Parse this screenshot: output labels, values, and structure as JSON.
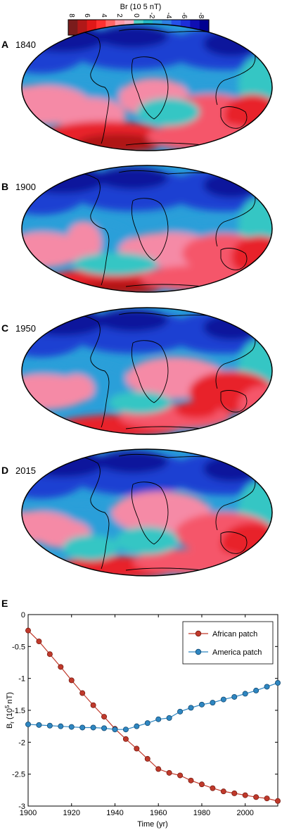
{
  "colorbar": {
    "title": "Br (10 5 nT)",
    "ticks": [
      "8",
      "6",
      "4",
      "2",
      "0",
      "-2",
      "-4",
      "-6",
      "-8"
    ],
    "colors": [
      "#7a1c1c",
      "#b01818",
      "#e01818",
      "#ff3030",
      "#ff6666",
      "#ff9aa8",
      "#f4b2c4",
      "#4fd0c8",
      "#22b7c4",
      "#2aa1dc",
      "#2f7fe4",
      "#2550e8",
      "#1c2fd9",
      "#0f0fb4",
      "#000090"
    ]
  },
  "maps": [
    {
      "panel": "A",
      "year": "1840"
    },
    {
      "panel": "B",
      "year": "1900"
    },
    {
      "panel": "C",
      "year": "1950"
    },
    {
      "panel": "D",
      "year": "2015"
    }
  ],
  "palette": {
    "ocean_neg": "#2a9fd9",
    "deep_neg": "#1e3fd2",
    "deepest_neg": "#0d129c",
    "near_zero_neg": "#34c6c4",
    "pos_light": "#f58aa6",
    "pos_mid": "#f5566a",
    "pos_strong": "#e8202a",
    "pos_deep": "#b01818",
    "coast": "#000000"
  },
  "chart_data": {
    "type": "line",
    "panel": "E",
    "xlabel": "Time (yr)",
    "ylabel": "B",
    "ylabel_sub": "r",
    "ylabel_unit": "(10",
    "ylabel_unit_sup": "5",
    "ylabel_unit_end": "nT)",
    "xlim": [
      1900,
      2015
    ],
    "ylim": [
      -3,
      0
    ],
    "xticks": [
      "1900",
      "1920",
      "1940",
      "1960",
      "1980",
      "2000"
    ],
    "yticks": [
      "0",
      "-0.5",
      "-1",
      "-1.5",
      "-2",
      "-2.5",
      "-3"
    ],
    "legend_position": "top-right",
    "series": [
      {
        "name": "African patch",
        "color": "#c0392b",
        "x": [
          1900,
          1905,
          1910,
          1915,
          1920,
          1925,
          1930,
          1935,
          1940,
          1945,
          1950,
          1955,
          1960,
          1965,
          1970,
          1975,
          1980,
          1985,
          1990,
          1995,
          2000,
          2005,
          2010,
          2015
        ],
        "y": [
          -0.25,
          -0.42,
          -0.62,
          -0.82,
          -1.03,
          -1.23,
          -1.42,
          -1.6,
          -1.79,
          -1.95,
          -2.1,
          -2.26,
          -2.42,
          -2.48,
          -2.52,
          -2.6,
          -2.66,
          -2.72,
          -2.77,
          -2.8,
          -2.83,
          -2.86,
          -2.88,
          -2.92
        ]
      },
      {
        "name": "America patch",
        "color": "#2e86c1",
        "x": [
          1900,
          1905,
          1910,
          1915,
          1920,
          1925,
          1930,
          1935,
          1940,
          1945,
          1950,
          1955,
          1960,
          1965,
          1970,
          1975,
          1980,
          1985,
          1990,
          1995,
          2000,
          2005,
          2010,
          2015
        ],
        "y": [
          -1.72,
          -1.73,
          -1.74,
          -1.75,
          -1.76,
          -1.77,
          -1.77,
          -1.78,
          -1.8,
          -1.8,
          -1.75,
          -1.7,
          -1.64,
          -1.62,
          -1.52,
          -1.46,
          -1.41,
          -1.38,
          -1.33,
          -1.29,
          -1.24,
          -1.19,
          -1.13,
          -1.07
        ]
      }
    ]
  }
}
